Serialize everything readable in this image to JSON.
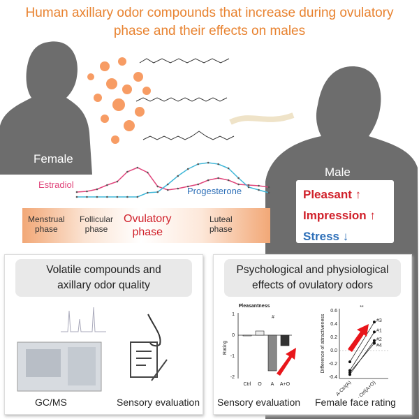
{
  "title": {
    "line1": "Human axillary odor compounds that increase during ovulatory",
    "line2": "phase and their effects on males"
  },
  "labels": {
    "female": "Female",
    "male": "Male",
    "estradiol": "Estradiol",
    "progesterone": "Progesterone"
  },
  "effects": [
    {
      "text": "Pleasant ↑",
      "color": "#d0202a"
    },
    {
      "text": "Impression ↑",
      "color": "#d0202a"
    },
    {
      "text": "Stress ↓",
      "color": "#2d6fb8"
    }
  ],
  "phases": {
    "menstrual": [
      "Menstrual",
      "phase"
    ],
    "follicular": [
      "Follicular",
      "phase"
    ],
    "ovulatory": [
      "Ovulatory",
      "phase"
    ],
    "luteal": [
      "Luteal",
      "phase"
    ]
  },
  "colors": {
    "title": "#e8822f",
    "estradiol": "#e0457b",
    "progesterone": "#3fb7d8",
    "odor": "#f47b30",
    "arrow": "#e8161b"
  },
  "hormone_curves": {
    "estradiol": [
      0.14,
      0.16,
      0.22,
      0.34,
      0.44,
      0.72,
      0.84,
      0.7,
      0.3,
      0.2,
      0.24,
      0.3,
      0.36,
      0.48,
      0.54,
      0.48,
      0.36,
      0.34,
      0.32,
      0.28
    ],
    "progesterone": [
      0.0,
      0.0,
      0.0,
      0.0,
      0.0,
      0.0,
      0.0,
      0.12,
      0.14,
      0.36,
      0.6,
      0.8,
      0.94,
      0.98,
      0.94,
      0.82,
      0.54,
      0.28,
      0.2,
      0.12
    ]
  },
  "left_panel": {
    "heading": [
      "Volatile compounds and",
      "axillary odor quality"
    ],
    "gcms": "GC/MS",
    "sensory": "Sensory evaluation"
  },
  "right_panel": {
    "heading": [
      "Psychological and physiological",
      "effects of ovulatory odors"
    ],
    "sensory": "Sensory evaluation",
    "face": "Female face rating"
  },
  "chart_data": [
    {
      "type": "bar",
      "title": "Pleasantness",
      "ylabel": "Rating",
      "categories": [
        "Ctrl",
        "O",
        "A",
        "A+O"
      ],
      "values": [
        0,
        0.2,
        -1.7,
        -0.5
      ],
      "ylim": [
        -2,
        1
      ],
      "yticks": [
        "1",
        "0",
        "-1",
        "-2"
      ],
      "annotation": "#"
    },
    {
      "type": "line",
      "ylabel": "Difference of attractiveness",
      "categories": [
        "A-Ctrl(A)",
        "A+O - Ctrl(A+O)"
      ],
      "ylim": [
        -0.4,
        0.6
      ],
      "yticks": [
        "0.6",
        "0.4",
        "0.2",
        "0.0",
        "-0.2",
        "-0.4"
      ],
      "annotation": "**",
      "series": [
        {
          "name": "#3",
          "values": [
            -0.17,
            0.43
          ]
        },
        {
          "name": "#1",
          "values": [
            -0.3,
            0.28
          ]
        },
        {
          "name": "#2",
          "values": [
            -0.36,
            0.15
          ]
        },
        {
          "name": "#4",
          "values": [
            -0.33,
            0.11
          ]
        }
      ]
    }
  ]
}
